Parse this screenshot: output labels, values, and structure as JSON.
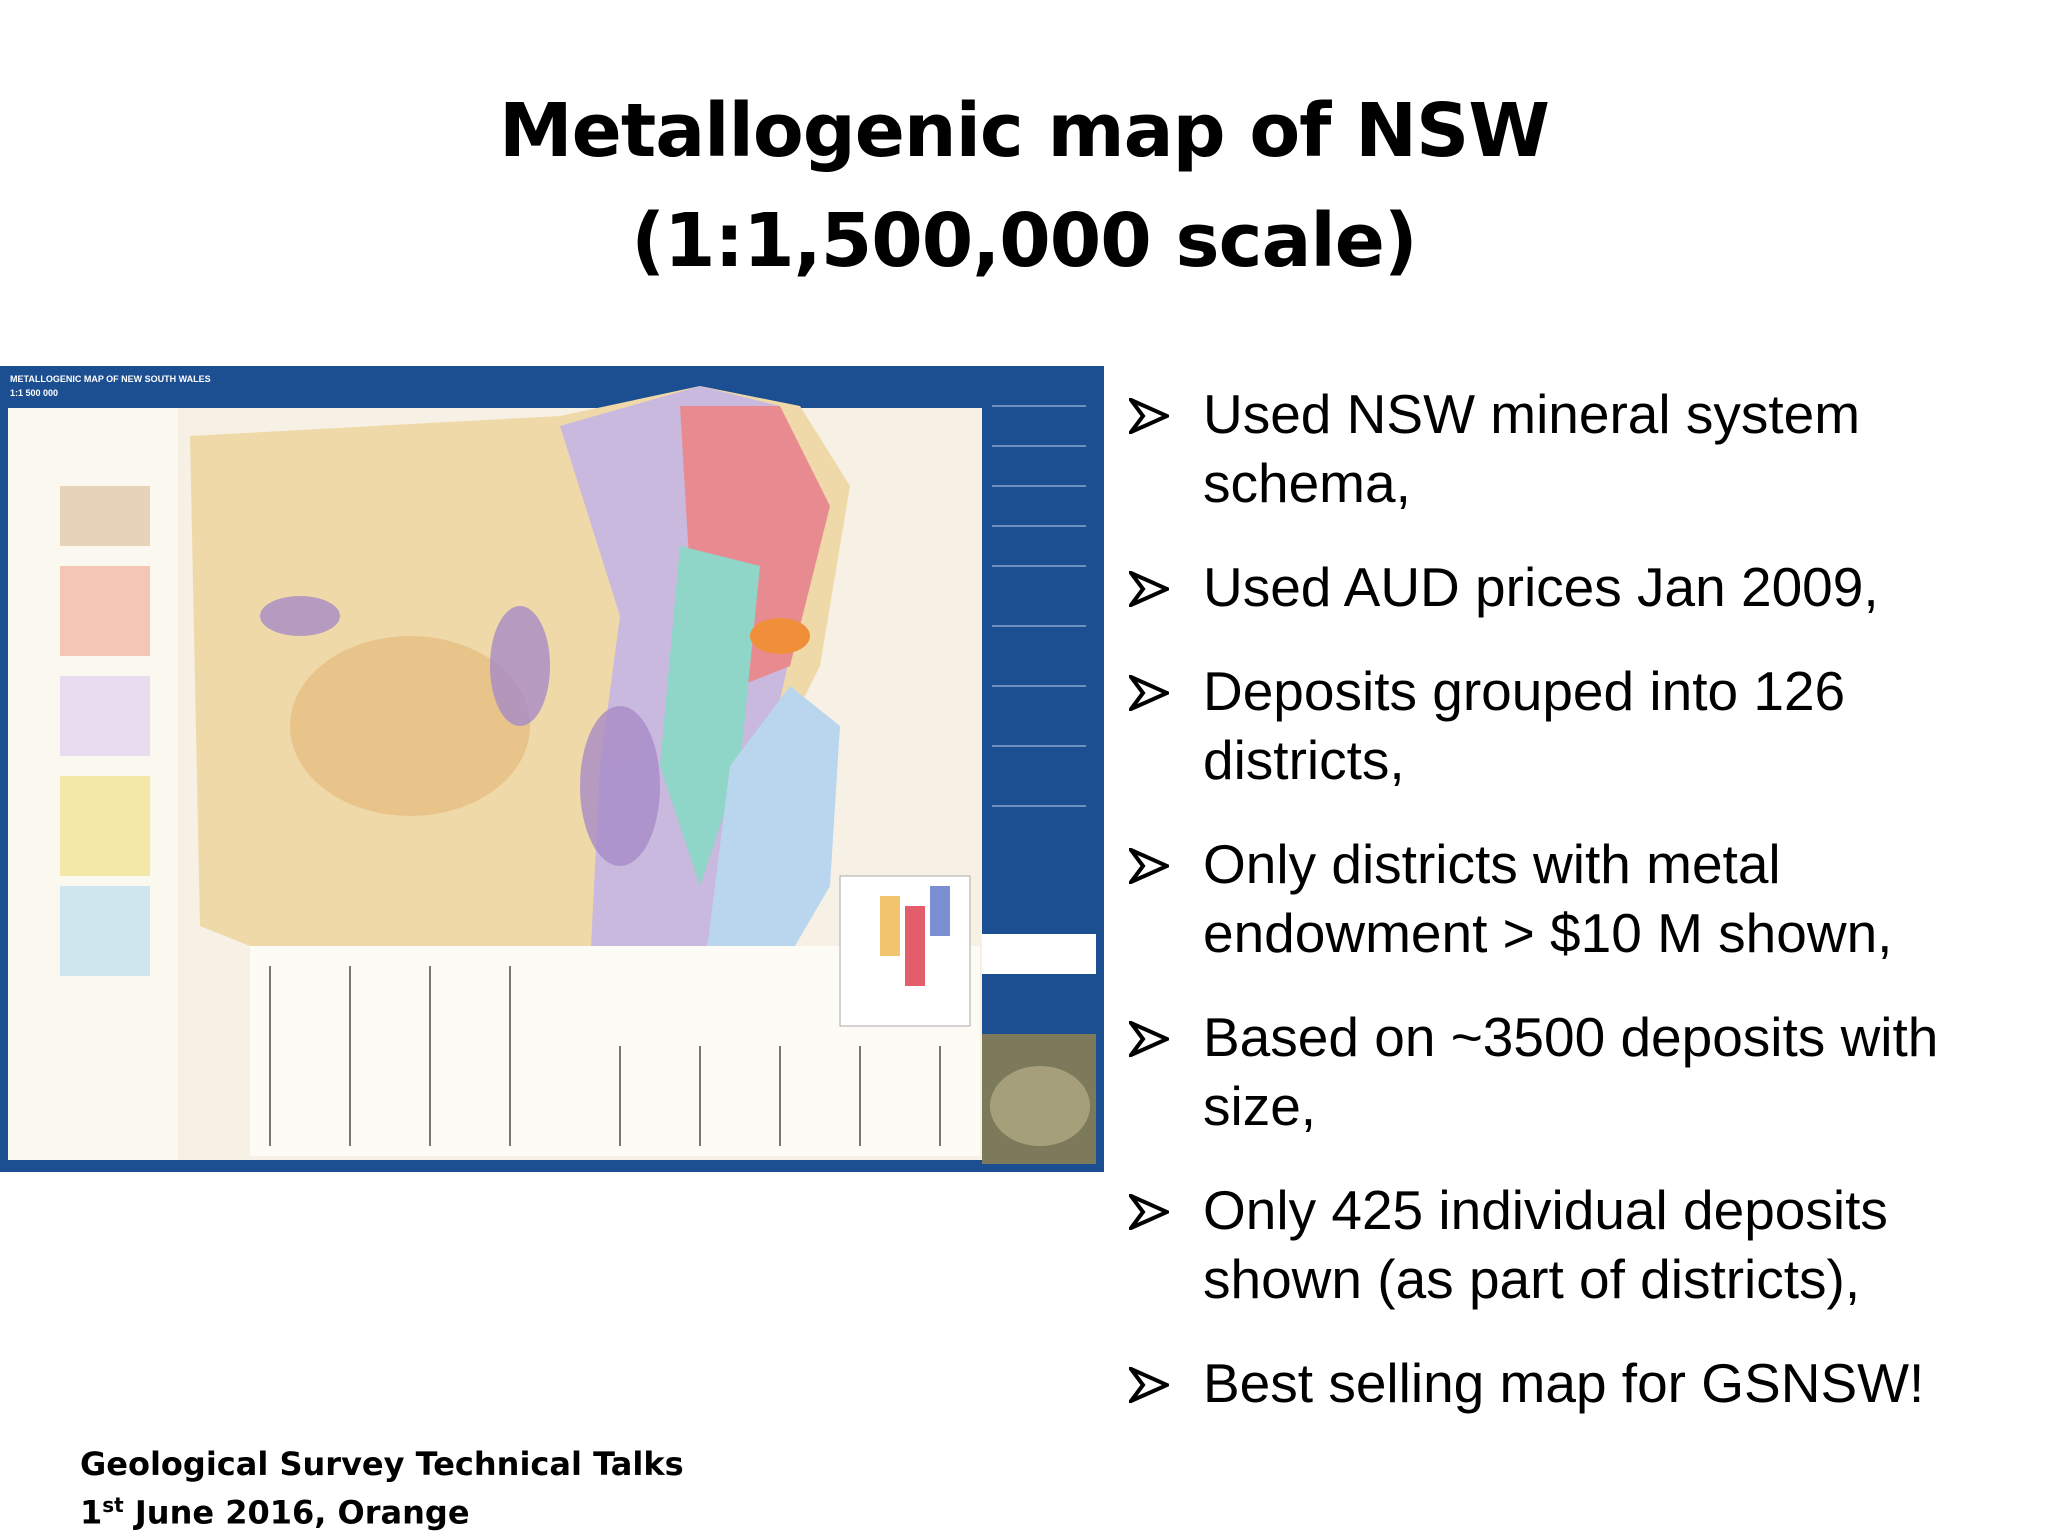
{
  "header": {
    "title_line1": "Metallogenic map of NSW",
    "title_line2": "(1:1,500,000 scale)"
  },
  "map": {
    "heading": "METALLOGENIC MAP OF NEW SOUTH WALES",
    "scale": "1:1 500 000"
  },
  "bullets": [
    "Used NSW mineral system schema,",
    "Used AUD prices Jan 2009,",
    "Deposits grouped into 126 districts,",
    "Only districts with metal endowment > $10 M shown,",
    "Based on ~3500 deposits with size,",
    "Only 425 individual deposits shown (as part of districts),",
    "Best selling map for GSNSW!"
  ],
  "footer": {
    "line1": "Geological Survey Technical Talks",
    "day": "1",
    "ordinal": "st",
    "rest": " June 2016, Orange"
  }
}
